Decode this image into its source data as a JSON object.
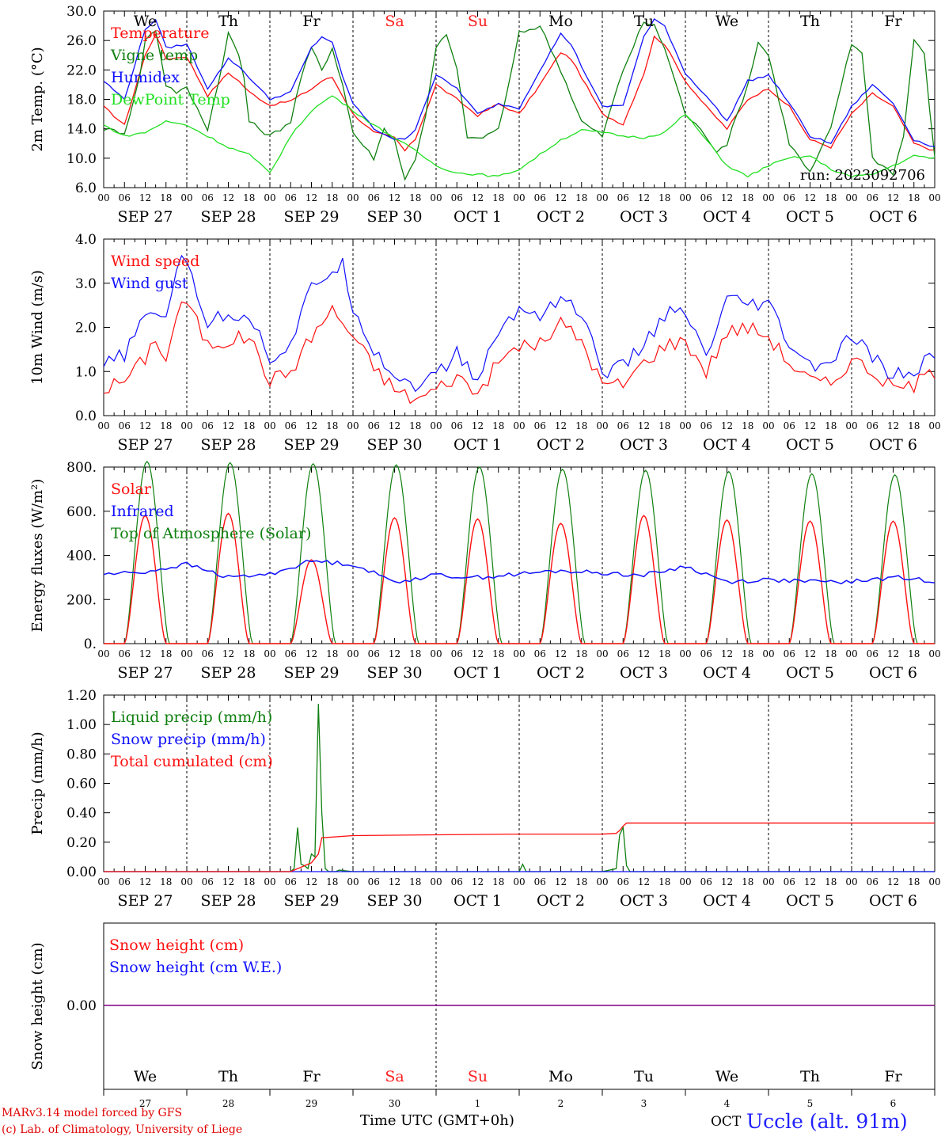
{
  "run_label": "run: 2023092706",
  "day_labels": [
    {
      "name": "We",
      "color": "#000000"
    },
    {
      "name": "Th",
      "color": "#000000"
    },
    {
      "name": "Fr",
      "color": "#000000"
    },
    {
      "name": "Sa",
      "color": "#ff2020"
    },
    {
      "name": "Su",
      "color": "#ff2020"
    },
    {
      "name": "Mo",
      "color": "#000000"
    },
    {
      "name": "Tu",
      "color": "#000000"
    },
    {
      "name": "We",
      "color": "#000000"
    },
    {
      "name": "Th",
      "color": "#000000"
    },
    {
      "name": "Fr",
      "color": "#000000"
    }
  ],
  "date_labels": [
    "SEP 27",
    "SEP 28",
    "SEP 29",
    "SEP 30",
    "OCT  1",
    "OCT  2",
    "OCT  3",
    "OCT  4",
    "OCT  5",
    "OCT  6"
  ],
  "hour_ticks": [
    "00",
    "06",
    "12",
    "18"
  ],
  "day_numbers": [
    "27",
    "28",
    "29",
    "30",
    "1",
    "2",
    "3",
    "4",
    "5",
    "6"
  ],
  "footer": {
    "credit_line1": "MARv3.14 model forced by GFS",
    "credit_line2": "(c) Lab. of Climatology, University of Liege",
    "x_title": "Time UTC (GMT+0h)",
    "month_word": "OCT",
    "station": "Uccle (alt. 91m)"
  },
  "colors": {
    "red": "#ff1010",
    "green": "#108010",
    "blue": "#1010ff",
    "lightgreen": "#20e020",
    "purple": "#800080"
  },
  "chart_data": [
    {
      "type": "line",
      "ylabel": "2m Temp. (°C)",
      "ylim": [
        6,
        30
      ],
      "yticks": [
        "6.0",
        "10.0",
        "14.0",
        "18.0",
        "22.0",
        "26.0",
        "30.0"
      ],
      "x_unit": "hours since SEP 27 00 UTC",
      "series": [
        {
          "name": "Temperature",
          "color": "#ff1010",
          "x": [
            0,
            6,
            12,
            15,
            18,
            24,
            30,
            36,
            39,
            42,
            48,
            54,
            60,
            63,
            66,
            69,
            72,
            78,
            84,
            87,
            90,
            96,
            102,
            108,
            114,
            120,
            126,
            132,
            135,
            138,
            144,
            150,
            156,
            159,
            162,
            168,
            174,
            180,
            186,
            192,
            198,
            204,
            210,
            216,
            222,
            228,
            234,
            240
          ],
          "y": [
            17,
            14.5,
            24,
            26.9,
            23.5,
            23.8,
            18.5,
            21.6,
            20.5,
            19,
            17.2,
            17.8,
            19.4,
            20.5,
            21.0,
            18.5,
            16.0,
            13.5,
            12.8,
            11.0,
            12.6,
            20.0,
            18.0,
            15.8,
            17.4,
            16.0,
            20.0,
            24.4,
            23.5,
            21.0,
            16.0,
            14.6,
            21.5,
            26.5,
            25.5,
            20.5,
            17.0,
            14.0,
            18.0,
            19.5,
            17.0,
            12.5,
            11.5,
            16.0,
            18.8,
            17.0,
            12.0,
            11.0
          ]
        },
        {
          "name": "Vigne temp",
          "color": "#108010",
          "x": [
            0,
            6,
            10,
            12,
            15,
            18,
            21,
            24,
            30,
            33,
            36,
            40,
            42,
            48,
            54,
            57,
            60,
            63,
            66,
            69,
            72,
            78,
            81,
            84,
            87,
            90,
            93,
            96,
            99,
            102,
            105,
            108,
            114,
            117,
            120,
            126,
            129,
            132,
            138,
            144,
            150,
            156,
            159,
            162,
            168,
            174,
            177,
            180,
            186,
            189,
            192,
            198,
            204,
            210,
            213,
            216,
            219,
            222,
            228,
            231,
            234,
            237,
            240
          ],
          "y": [
            14,
            13.5,
            20,
            26,
            27.5,
            20,
            19,
            19.5,
            14,
            20,
            27,
            23,
            15,
            13,
            15,
            21,
            25,
            22,
            25,
            20,
            13.5,
            10,
            14,
            12.5,
            7,
            10,
            16,
            25,
            26.8,
            22,
            13,
            12.5,
            14,
            20,
            27,
            28,
            25,
            22,
            15,
            13,
            22,
            28.5,
            28,
            25,
            16,
            13,
            11,
            12,
            20,
            25.8,
            24,
            12,
            8,
            14,
            20,
            25.5,
            24.5,
            10,
            8,
            13,
            26.2,
            24,
            10
          ]
        },
        {
          "name": "Humidex",
          "color": "#1010ff",
          "x": [
            0,
            6,
            12,
            15,
            18,
            24,
            30,
            36,
            39,
            42,
            48,
            54,
            60,
            63,
            66,
            69,
            72,
            78,
            84,
            87,
            90,
            96,
            102,
            108,
            114,
            120,
            126,
            132,
            135,
            138,
            144,
            150,
            156,
            159,
            162,
            168,
            174,
            180,
            186,
            192,
            198,
            204,
            210,
            216,
            222,
            228,
            234,
            240
          ],
          "y": [
            20.5,
            18.0,
            27.5,
            28.9,
            25.0,
            25.5,
            19.5,
            23.5,
            22.5,
            21.0,
            18.0,
            19.0,
            25.0,
            26.5,
            25.8,
            21.0,
            17.5,
            14.0,
            12.6,
            12.5,
            14.0,
            21.3,
            19.5,
            16.0,
            17.4,
            16.8,
            22.0,
            26.9,
            25.5,
            22.5,
            17.0,
            17.2,
            26.5,
            28.8,
            28.0,
            21.5,
            18.5,
            15.0,
            20.5,
            21.3,
            17.5,
            13.0,
            12.0,
            17.0,
            20.0,
            17.5,
            12.5,
            11.5
          ]
        },
        {
          "name": "DewPoint Temp",
          "color": "#20e020",
          "x": [
            0,
            6,
            12,
            18,
            24,
            30,
            36,
            42,
            48,
            54,
            60,
            66,
            72,
            78,
            84,
            90,
            96,
            102,
            108,
            114,
            120,
            126,
            132,
            138,
            144,
            150,
            156,
            162,
            168,
            174,
            180,
            186,
            192,
            198,
            204,
            210,
            216,
            222,
            228,
            234,
            240
          ],
          "y": [
            14.5,
            13.0,
            13.5,
            15.0,
            14.5,
            13.0,
            11.5,
            10.5,
            8.0,
            13.0,
            16.5,
            18.5,
            16.5,
            14.5,
            12.8,
            11.0,
            9.0,
            8.0,
            7.8,
            7.5,
            8.5,
            10.5,
            12.5,
            13.8,
            13.5,
            13.0,
            12.8,
            13.5,
            16.0,
            12.5,
            9.0,
            7.5,
            9.0,
            10.0,
            10.3,
            8.5,
            7.5,
            7.8,
            9.0,
            10.3,
            10.0
          ]
        }
      ]
    },
    {
      "type": "line",
      "ylabel": "10m Wind (m/s)",
      "ylim": [
        0,
        4
      ],
      "yticks": [
        "0.0",
        "1.0",
        "2.0",
        "3.0",
        "4.0"
      ],
      "x_unit": "hours since SEP 27 00 UTC",
      "series": [
        {
          "name": "Wind speed",
          "color": "#ff1010",
          "x": [
            0,
            6,
            12,
            15,
            18,
            21,
            24,
            30,
            36,
            42,
            48,
            54,
            60,
            66,
            69,
            72,
            78,
            84,
            90,
            96,
            102,
            108,
            114,
            120,
            126,
            132,
            138,
            144,
            150,
            156,
            162,
            168,
            174,
            180,
            186,
            192,
            198,
            204,
            210,
            216,
            222,
            228,
            234,
            240
          ],
          "y": [
            0.6,
            0.8,
            1.3,
            1.8,
            1.2,
            2.3,
            2.6,
            1.6,
            1.7,
            1.8,
            0.8,
            1.0,
            1.8,
            2.4,
            2.1,
            1.8,
            1.1,
            0.6,
            0.35,
            0.6,
            0.9,
            0.5,
            1.2,
            1.6,
            1.6,
            2.1,
            1.7,
            0.7,
            0.7,
            1.2,
            1.6,
            1.7,
            1.0,
            1.9,
            2.0,
            1.8,
            1.2,
            0.8,
            0.7,
            1.3,
            1.0,
            0.6,
            0.7,
            1.0
          ]
        },
        {
          "name": "Wind gust",
          "color": "#1010ff",
          "x": [
            0,
            6,
            12,
            15,
            18,
            21,
            24,
            30,
            36,
            42,
            48,
            54,
            60,
            66,
            69,
            72,
            78,
            84,
            90,
            96,
            102,
            108,
            114,
            120,
            126,
            132,
            138,
            144,
            150,
            156,
            162,
            168,
            174,
            180,
            186,
            192,
            198,
            204,
            210,
            216,
            222,
            228,
            234,
            240
          ],
          "y": [
            1.1,
            1.4,
            2.2,
            2.4,
            2.2,
            3.4,
            3.5,
            2.1,
            2.3,
            2.3,
            1.3,
            1.6,
            2.9,
            3.3,
            3.4,
            2.5,
            1.5,
            0.9,
            0.7,
            0.9,
            1.4,
            0.8,
            1.9,
            2.4,
            2.3,
            2.7,
            2.3,
            1.0,
            1.1,
            1.6,
            2.3,
            2.3,
            1.3,
            2.6,
            2.5,
            2.5,
            1.6,
            1.1,
            1.2,
            1.8,
            1.3,
            0.9,
            1.0,
            1.4
          ]
        }
      ]
    },
    {
      "type": "line",
      "ylabel": "Energy fluxes (W/m²)",
      "ylim": [
        0,
        800
      ],
      "yticks": [
        "0.",
        "200.",
        "400.",
        "600.",
        "800."
      ],
      "x_unit": "hours since SEP 27 00 UTC",
      "series": [
        {
          "name": "Solar",
          "color": "#ff1010",
          "peaks": [
            580,
            590,
            380,
            570,
            565,
            545,
            580,
            560,
            555,
            555
          ],
          "sunrise_h": 6,
          "sunset_h": 18
        },
        {
          "name": "Infrared",
          "color": "#1010ff",
          "x": [
            0,
            12,
            24,
            36,
            48,
            60,
            72,
            84,
            96,
            108,
            120,
            132,
            144,
            156,
            168,
            180,
            192,
            204,
            216,
            228,
            240
          ],
          "y": [
            315,
            325,
            360,
            300,
            315,
            375,
            360,
            280,
            310,
            300,
            315,
            330,
            320,
            310,
            350,
            280,
            290,
            280,
            280,
            300,
            285
          ]
        },
        {
          "name": "Top of Atmosphere (Solar)",
          "color": "#108010",
          "peaks": [
            825,
            820,
            815,
            810,
            800,
            790,
            785,
            780,
            770,
            765
          ],
          "sunrise_h": 6,
          "sunset_h": 19
        }
      ]
    },
    {
      "type": "line",
      "ylabel": "Precip (mm/h)",
      "ylim": [
        0,
        1.2
      ],
      "yticks": [
        "0.00",
        "0.20",
        "0.40",
        "0.60",
        "0.80",
        "1.00",
        "1.20"
      ],
      "x_unit": "hours since SEP 27 00 UTC",
      "series": [
        {
          "name": "Liquid precip (mm/h)",
          "color": "#108010",
          "x": [
            0,
            48,
            54,
            55,
            56,
            57,
            58,
            59,
            60,
            61,
            62,
            63,
            64,
            65,
            66,
            67,
            68,
            72,
            120,
            121,
            122,
            144,
            148,
            149,
            150,
            151,
            152,
            153,
            240
          ],
          "y": [
            0,
            0,
            0,
            0.02,
            0.3,
            0.05,
            0.04,
            0.02,
            0.12,
            0.1,
            1.14,
            0.4,
            0.02,
            0,
            0,
            0,
            0.01,
            0,
            0,
            0.05,
            0,
            0,
            0.02,
            0.25,
            0.3,
            0.04,
            0,
            0,
            0
          ]
        },
        {
          "name": "Snow precip (mm/h)",
          "color": "#1010ff",
          "x": [
            0,
            240
          ],
          "y": [
            0,
            0
          ]
        },
        {
          "name": "Total cumulated (cm)",
          "color": "#ff1010",
          "x": [
            0,
            54,
            57,
            60,
            62,
            63,
            72,
            96,
            120,
            144,
            148,
            149,
            150,
            151,
            240
          ],
          "y": [
            0,
            0,
            0.03,
            0.06,
            0.12,
            0.23,
            0.245,
            0.25,
            0.255,
            0.255,
            0.26,
            0.28,
            0.31,
            0.33,
            0.33
          ]
        }
      ]
    },
    {
      "type": "line",
      "ylabel": "Snow height (cm)",
      "ytick": "0.00",
      "series": [
        {
          "name": "Snow height (cm)",
          "color": "#ff1010",
          "x": [
            0,
            240
          ],
          "y": [
            0,
            0
          ]
        },
        {
          "name": "Snow height (cm W.E.)",
          "color": "#1010ff",
          "x": [
            0,
            240
          ],
          "y": [
            0,
            0
          ]
        }
      ]
    }
  ]
}
